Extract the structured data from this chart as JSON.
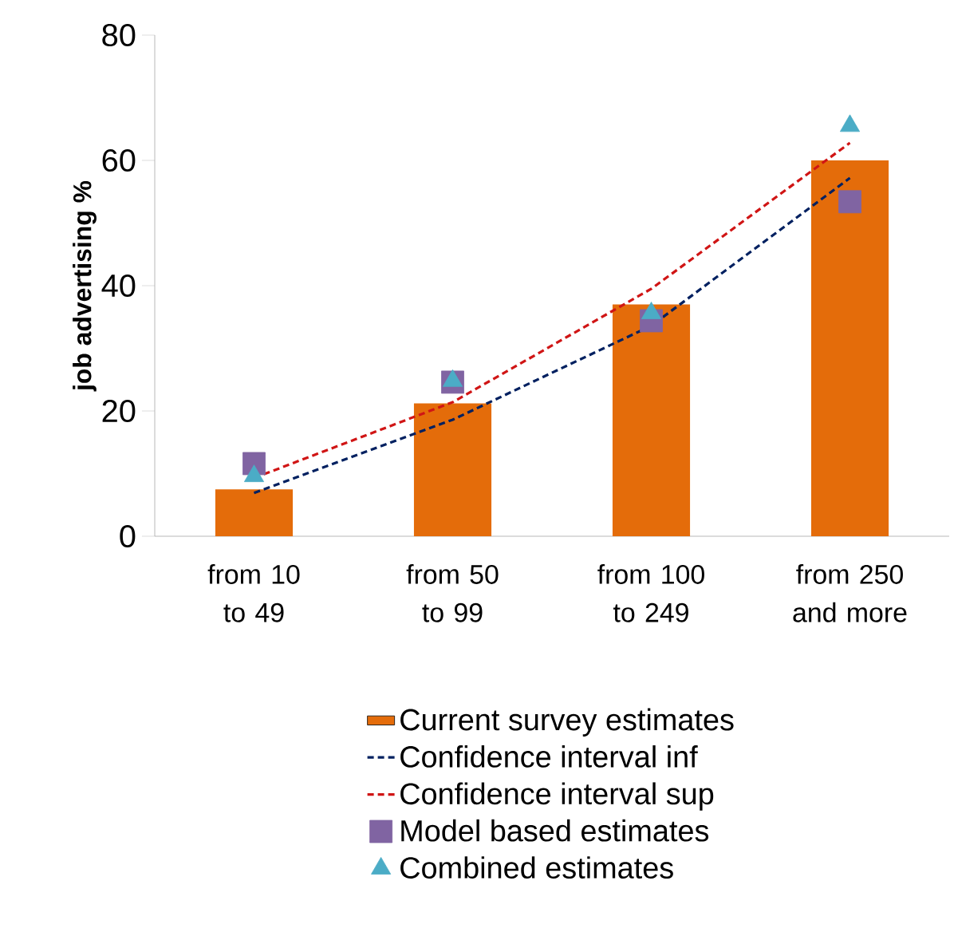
{
  "chart_data": {
    "type": "bar",
    "ylabel": "job advertising %",
    "categories": [
      "from 10 to 49",
      "from 50 to 99",
      "from 100 to 249",
      "from 250 and more"
    ],
    "ylim": [
      0,
      80
    ],
    "yticks": [
      0,
      20,
      40,
      60,
      80
    ],
    "legend": "bottom",
    "series": [
      {
        "name": "Current survey estimates",
        "color": "#e46c0a",
        "values": [
          7.5,
          21.2,
          37,
          60
        ]
      },
      {
        "name": "Confidence interval inf",
        "type": "line",
        "line_style": "dashed",
        "color": "#002060",
        "values": [
          6.9,
          18.6,
          33.6,
          57.2
        ]
      },
      {
        "name": "Confidence interval sup",
        "type": "line",
        "line_style": "dashed",
        "color": "#d01515",
        "values": [
          9.3,
          21.4,
          39.5,
          62.8
        ]
      },
      {
        "name": "Model based estimates",
        "type": "scatter",
        "marker": "square",
        "color": "#8064a2",
        "values": [
          11.6,
          24.6,
          34.4,
          53.4
        ]
      },
      {
        "name": "Combined estimates",
        "type": "scatter",
        "marker": "triangle",
        "color": "#4bacc6",
        "values": [
          9.6,
          24.8,
          35.6,
          65.5
        ]
      }
    ]
  }
}
